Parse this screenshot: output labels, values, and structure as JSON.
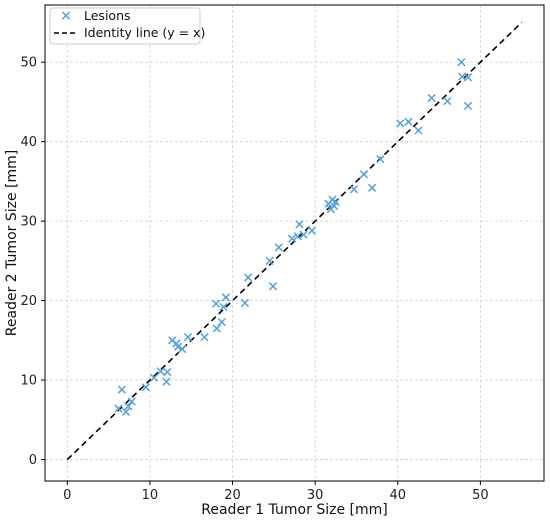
{
  "chart_data": {
    "type": "scatter",
    "xlabel": "Reader 1 Tumor Size [mm]",
    "ylabel": "Reader 2 Tumor Size [mm]",
    "xlim": [
      -2.7,
      57.7
    ],
    "ylim": [
      -2.7,
      57.2
    ],
    "xticks": [
      0,
      10,
      20,
      30,
      40,
      50
    ],
    "yticks": [
      0,
      10,
      20,
      30,
      40,
      50
    ],
    "grid": true,
    "legend_position": "top-left",
    "series": [
      {
        "name": "Lesions",
        "marker": "x",
        "color": "#4ea3e0",
        "points": [
          [
            6.2,
            6.4
          ],
          [
            6.6,
            8.8
          ],
          [
            7.1,
            6.0
          ],
          [
            7.4,
            6.7
          ],
          [
            7.8,
            7.3
          ],
          [
            9.5,
            9.1
          ],
          [
            10.5,
            10.3
          ],
          [
            11.3,
            11.1
          ],
          [
            12.0,
            9.8
          ],
          [
            12.1,
            11.0
          ],
          [
            12.7,
            15.0
          ],
          [
            13.2,
            14.6
          ],
          [
            13.4,
            14.2
          ],
          [
            13.9,
            13.9
          ],
          [
            14.6,
            15.4
          ],
          [
            16.6,
            15.4
          ],
          [
            18.0,
            19.6
          ],
          [
            18.1,
            16.5
          ],
          [
            18.7,
            17.3
          ],
          [
            18.9,
            19.2
          ],
          [
            19.2,
            20.4
          ],
          [
            21.5,
            19.7
          ],
          [
            21.9,
            22.9
          ],
          [
            24.5,
            25.0
          ],
          [
            24.9,
            21.8
          ],
          [
            25.6,
            26.7
          ],
          [
            27.2,
            27.8
          ],
          [
            27.9,
            28.1
          ],
          [
            28.1,
            29.6
          ],
          [
            28.6,
            28.3
          ],
          [
            29.6,
            28.8
          ],
          [
            31.6,
            32.2
          ],
          [
            31.9,
            31.5
          ],
          [
            32.1,
            32.7
          ],
          [
            32.3,
            31.9
          ],
          [
            32.5,
            32.4
          ],
          [
            34.7,
            34.0
          ],
          [
            35.9,
            35.9
          ],
          [
            36.9,
            34.2
          ],
          [
            37.9,
            37.8
          ],
          [
            40.3,
            42.3
          ],
          [
            41.3,
            42.5
          ],
          [
            42.5,
            41.4
          ],
          [
            44.1,
            45.5
          ],
          [
            46.0,
            45.1
          ],
          [
            47.7,
            50.0
          ],
          [
            47.8,
            48.2
          ],
          [
            48.5,
            48.1
          ],
          [
            48.5,
            44.5
          ]
        ]
      },
      {
        "name": "Identity line (y = x)",
        "style": "dashed",
        "color": "#000000",
        "points": [
          [
            0,
            0
          ],
          [
            55,
            55
          ]
        ]
      }
    ]
  }
}
